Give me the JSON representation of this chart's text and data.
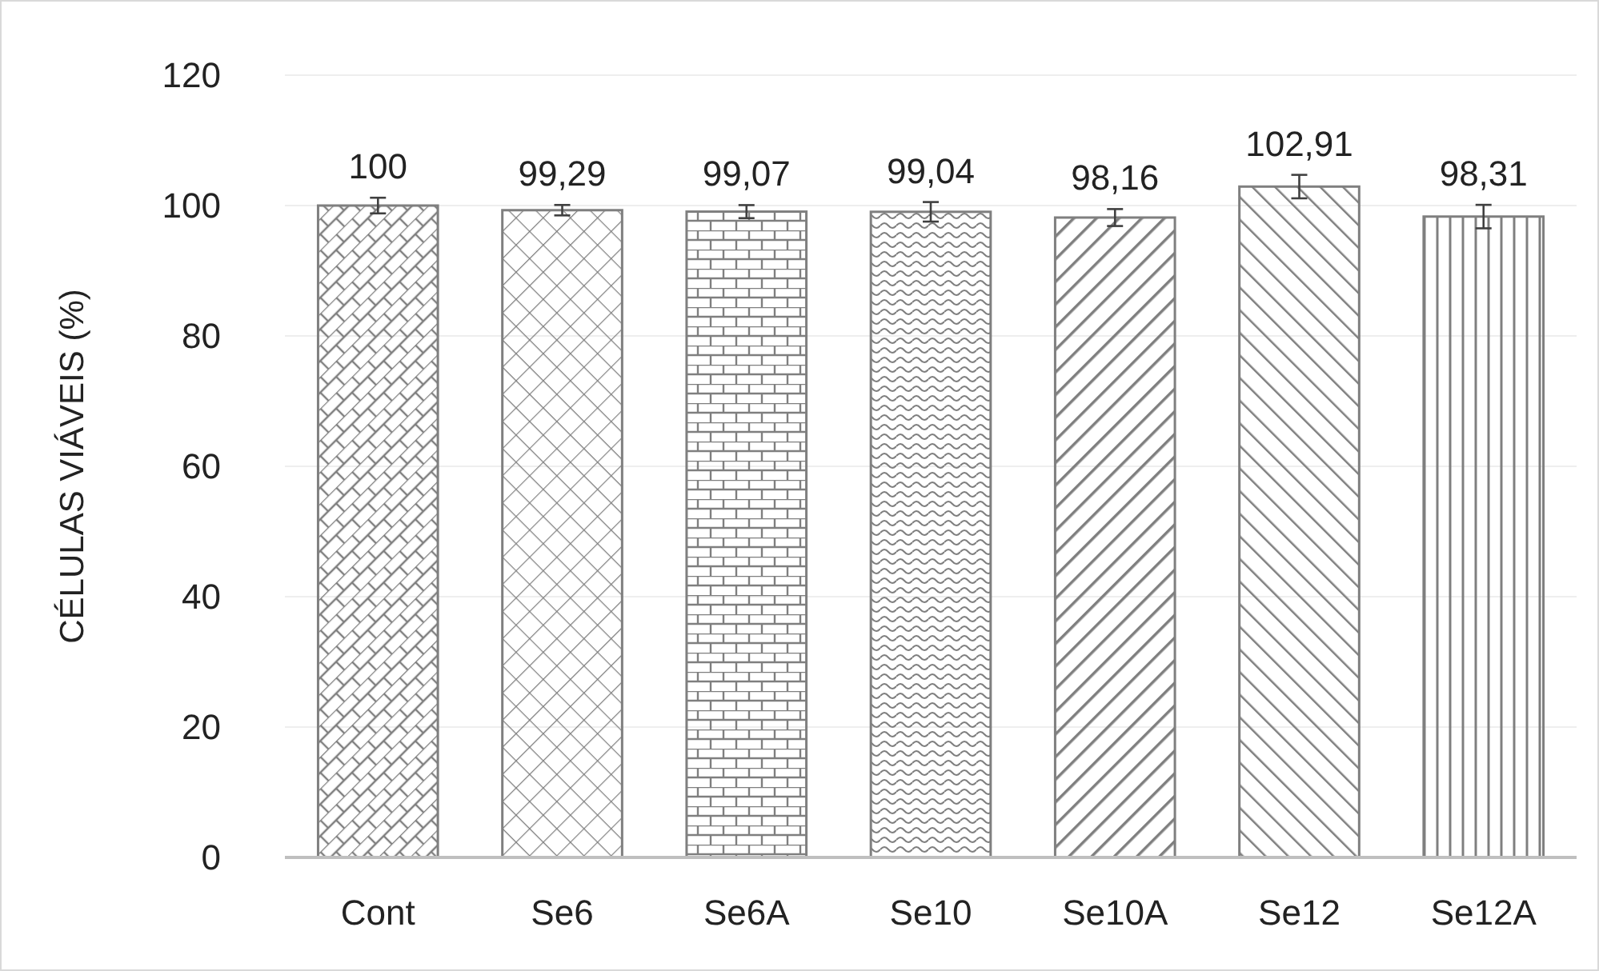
{
  "chart_data": {
    "type": "bar",
    "ylabel": "CÉLULAS VIÁVEIS (%)",
    "categories": [
      "Cont",
      "Se6",
      "Se6A",
      "Se10",
      "Se10A",
      "Se12",
      "Se12A"
    ],
    "values": [
      100,
      99.29,
      99.07,
      99.04,
      98.16,
      102.91,
      98.31
    ],
    "errors": [
      1.2,
      0.8,
      1,
      1.5,
      1.3,
      1.8,
      1.8
    ],
    "value_labels": [
      "100",
      "99,29",
      "99,07",
      "99,04",
      "98,16",
      "102,91",
      "98,31"
    ],
    "color": "#7f7f7f",
    "ylim": [
      0,
      120
    ],
    "yticks": [
      0,
      20,
      40,
      60,
      80,
      100,
      120
    ],
    "grid": "y"
  }
}
